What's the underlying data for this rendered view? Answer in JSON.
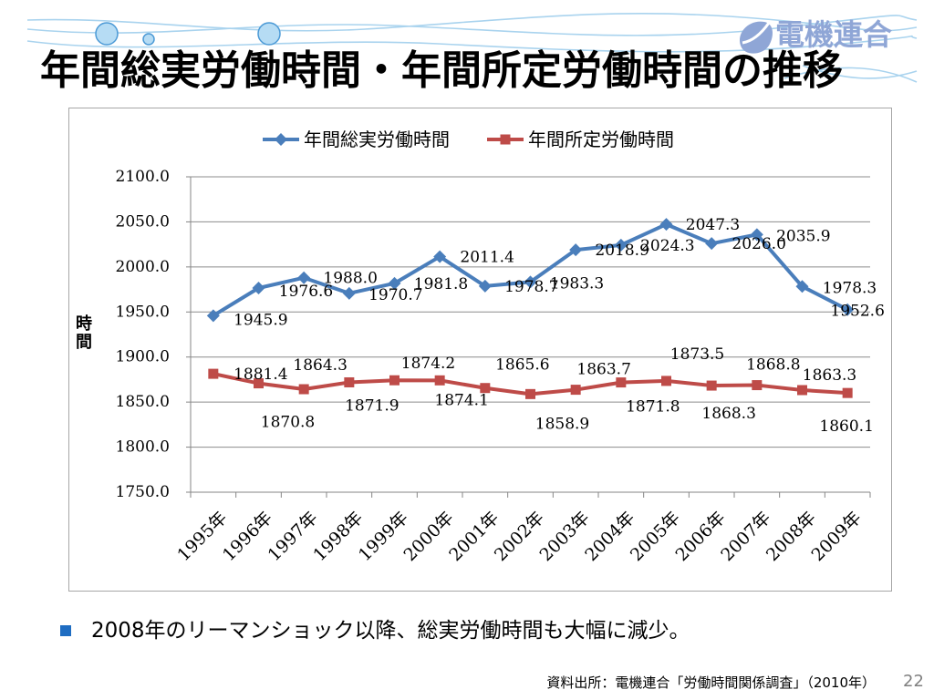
{
  "slide": {
    "title": "年間総実労働時間・年間所定労働時間の推移",
    "logo_text": "電機連合",
    "bullets": [
      {
        "text": "2008年のリーマンショック以降、総実労働時間も大幅に減少。",
        "icon": "square-bullet-icon"
      }
    ],
    "source": "資料出所：電機連合「労働時間関係調査」（2010年）",
    "page_number": "22"
  },
  "icons": {
    "logo": "logo-swoosh-icon",
    "decoration": [
      "wave-decoration",
      "bubble-decoration"
    ]
  },
  "colors": {
    "title": "#000000",
    "logo": "#8FA6D6",
    "bullet": "#1F6DC2",
    "wave": "#A9D3EE",
    "bubble_fill": "#B6DCF4",
    "bubble_stroke": "#4C9AD6",
    "page_number": "#7F7F7F"
  },
  "chart_data": {
    "type": "line",
    "title": "",
    "xlabel": "",
    "ylabel": "時間",
    "categories": [
      "1995年",
      "1996年",
      "1997年",
      "1998年",
      "1999年",
      "2000年",
      "2001年",
      "2002年",
      "2003年",
      "2004年",
      "2005年",
      "2006年",
      "2007年",
      "2008年",
      "2009年"
    ],
    "series": [
      {
        "name": "年間総実労働時間",
        "color": "#4A7EBB",
        "marker": "diamond",
        "values": [
          1945.9,
          1976.6,
          1988.0,
          1970.7,
          1981.8,
          2011.4,
          1978.7,
          1983.3,
          2018.9,
          2024.3,
          2047.3,
          2026.0,
          2035.9,
          1978.3,
          1952.6
        ]
      },
      {
        "name": "年間所定労働時間",
        "color": "#BE4B48",
        "marker": "square",
        "values": [
          1881.4,
          1870.8,
          1864.3,
          1871.9,
          1874.2,
          1874.1,
          1865.6,
          1858.9,
          1863.7,
          1871.8,
          1873.5,
          1868.3,
          1868.8,
          1863.3,
          1860.1
        ]
      }
    ],
    "ylim": [
      1750,
      2100
    ],
    "yticks": [
      1750,
      1800,
      1850,
      1900,
      1950,
      2000,
      2050,
      2100
    ],
    "grid": true,
    "legend_position": "top",
    "data_labels": true
  }
}
